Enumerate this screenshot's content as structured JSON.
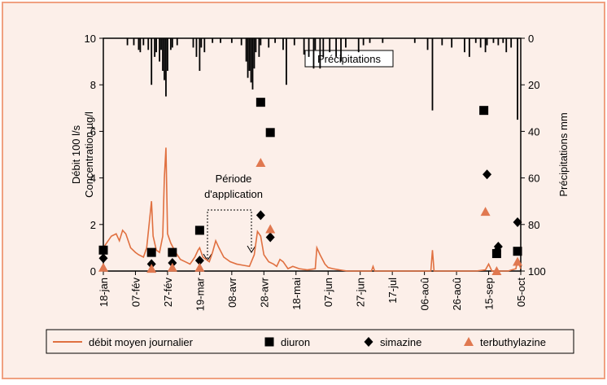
{
  "chart_data": {
    "type": "line",
    "ylabel": [
      "Débit 100 l/s",
      "Concentration µg/l"
    ],
    "y2label": "Précipitations mm",
    "annotations": {
      "application": [
        "Période",
        "d'application"
      ]
    },
    "xlim": [
      18,
      278
    ],
    "xticks": [
      {
        "value": 18,
        "label": "18-jan"
      },
      {
        "value": 38,
        "label": "07-fév"
      },
      {
        "value": 58,
        "label": "27-fév"
      },
      {
        "value": 78,
        "label": "19-mar"
      },
      {
        "value": 98,
        "label": "08-avr"
      },
      {
        "value": 118,
        "label": "28-avr"
      },
      {
        "value": 138,
        "label": "18-mai"
      },
      {
        "value": 158,
        "label": "07-jun"
      },
      {
        "value": 178,
        "label": "27-jun"
      },
      {
        "value": 198,
        "label": "17-jul"
      },
      {
        "value": 218,
        "label": "06-aoû"
      },
      {
        "value": 238,
        "label": "26-aoû"
      },
      {
        "value": 258,
        "label": "15-sep"
      },
      {
        "value": 278,
        "label": "05-oct"
      }
    ],
    "ylim": [
      0,
      10
    ],
    "yticks": [
      0,
      2,
      4,
      6,
      8,
      10
    ],
    "y2lim": [
      0,
      100
    ],
    "y2ticks": [
      0,
      20,
      40,
      60,
      80,
      100
    ],
    "y2_inverted": true,
    "series": [
      {
        "name": "débit moyen journalier",
        "type": "line",
        "color": "#e07040",
        "x": [
          18,
          20,
          23,
          26,
          28,
          30,
          32,
          35,
          38,
          40,
          43,
          45,
          48,
          49,
          51,
          53,
          55,
          56,
          57,
          58,
          60,
          63,
          66,
          69,
          72,
          75,
          77,
          78,
          80,
          82,
          84,
          86,
          88,
          90,
          93,
          97,
          101,
          105,
          109,
          112,
          114,
          116,
          118,
          121,
          124,
          126,
          128,
          130,
          133,
          136,
          140,
          145,
          150,
          151,
          153,
          156,
          158,
          161,
          165,
          170,
          185,
          186,
          187,
          200,
          215,
          222,
          223,
          224,
          250,
          256,
          258,
          260,
          270,
          275,
          276,
          278
        ],
        "values": [
          1.0,
          1.2,
          1.5,
          1.6,
          1.3,
          1.75,
          1.6,
          1.0,
          0.8,
          0.7,
          0.6,
          1.0,
          3.0,
          1.5,
          0.9,
          0.8,
          1.5,
          4.0,
          5.3,
          1.6,
          1.2,
          0.8,
          0.5,
          0.4,
          0.3,
          0.6,
          0.9,
          1.0,
          0.6,
          0.5,
          0.4,
          0.8,
          1.3,
          1.0,
          0.6,
          0.4,
          0.3,
          0.25,
          0.2,
          0.7,
          1.7,
          1.5,
          0.7,
          0.4,
          0.3,
          0.2,
          0.5,
          0.4,
          0.1,
          0.2,
          0.1,
          0.05,
          0.1,
          1.0,
          0.7,
          0.3,
          0.15,
          0.1,
          0.05,
          0.0,
          0.0,
          0.2,
          0.0,
          0.0,
          0.0,
          0.0,
          0.9,
          0.0,
          0.0,
          0.05,
          0.3,
          0.0,
          0.0,
          0.1,
          0.5,
          0.1
        ]
      },
      {
        "name": "diuron",
        "type": "scatter",
        "marker": "square",
        "color": "#000000",
        "x": [
          18,
          48,
          61,
          78,
          116,
          122,
          255,
          263,
          276
        ],
        "values": [
          0.9,
          0.8,
          0.8,
          1.75,
          7.25,
          5.95,
          6.9,
          0.75,
          0.85
        ]
      },
      {
        "name": "simazine",
        "type": "scatter",
        "marker": "diamond",
        "color": "#000000",
        "x": [
          18,
          48,
          61,
          78,
          116,
          122,
          257,
          263,
          264,
          276
        ],
        "values": [
          0.55,
          0.3,
          0.35,
          0.45,
          2.4,
          1.45,
          4.15,
          0.85,
          1.05,
          2.1
        ]
      },
      {
        "name": "terbuthylazine",
        "type": "scatter",
        "marker": "triangle",
        "color": "#e07850",
        "x": [
          18,
          48,
          61,
          78,
          116,
          122,
          256,
          263,
          276
        ],
        "values": [
          0.15,
          0.1,
          0.15,
          0.15,
          4.65,
          1.8,
          2.55,
          0.0,
          0.4
        ]
      },
      {
        "name": "Précipitations",
        "type": "bar",
        "axis": "y2",
        "color": "#000000",
        "x": [
          33,
          37,
          40,
          41,
          43,
          46,
          48,
          50,
          51,
          53,
          54,
          55,
          56,
          57,
          58,
          60,
          61,
          64,
          74,
          76,
          78,
          79,
          81,
          86,
          91,
          98,
          104,
          107,
          108,
          109,
          110,
          111,
          112,
          113,
          115,
          116,
          121,
          125,
          130,
          132,
          137,
          143,
          146,
          149,
          150,
          153,
          155,
          159,
          163,
          166,
          169,
          177,
          180,
          184,
          192,
          212,
          220,
          223,
          229,
          235,
          243,
          246,
          250,
          253,
          256,
          257,
          261,
          264,
          267,
          269,
          272,
          276
        ],
        "values": [
          3,
          3,
          5,
          6,
          3,
          5,
          20,
          8,
          6,
          10,
          5,
          14,
          18,
          25,
          14,
          5,
          4,
          3,
          4,
          8,
          14,
          4,
          6,
          2,
          2,
          2,
          3,
          10,
          17,
          14,
          19,
          22,
          13,
          6,
          8,
          3,
          4,
          2,
          5,
          20,
          3,
          7,
          8,
          13,
          5,
          13,
          8,
          6,
          8,
          10,
          4,
          6,
          3,
          2,
          2,
          2,
          5,
          31,
          3,
          4,
          6,
          8,
          2,
          4,
          6,
          3,
          2,
          3,
          2,
          6,
          4,
          35
        ]
      }
    ]
  }
}
